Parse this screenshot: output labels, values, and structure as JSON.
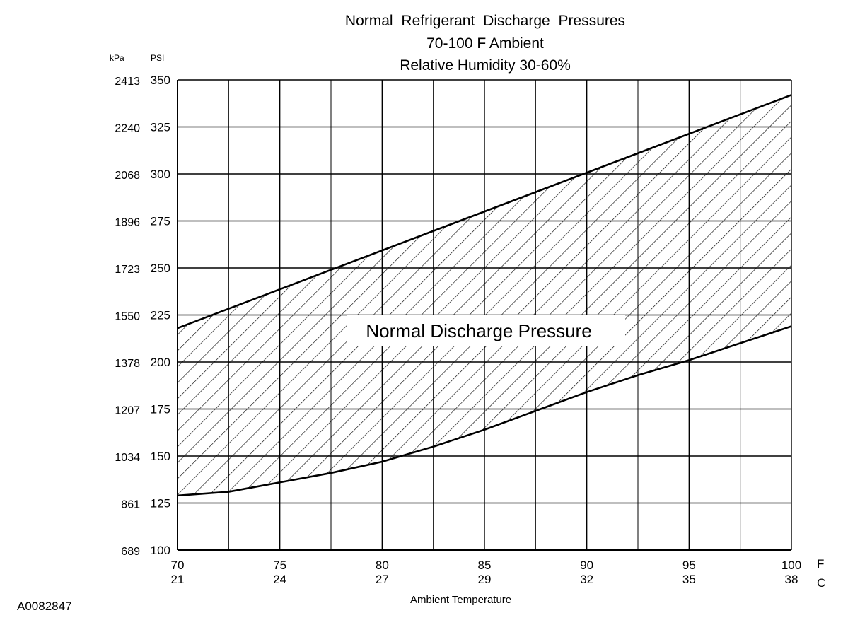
{
  "chart_data": {
    "type": "area",
    "title": "Normal Refrigerant Discharge Pressures",
    "subtitle_1": "70-100 F Ambient",
    "subtitle_2": "Relative Humidity 30-60%",
    "band_label": "Normal Discharge Pressure",
    "xlabel": "Ambient Temperature",
    "x_unit_primary": "F",
    "x_unit_secondary": "C",
    "y_unit_primary": "PSI",
    "y_unit_secondary": "kPa",
    "xlim": [
      70,
      100
    ],
    "ylim": [
      100,
      350
    ],
    "x_ticks": [
      {
        "f": 70,
        "label_f": "70",
        "label_c": "21"
      },
      {
        "f": 75,
        "label_f": "75",
        "label_c": "24"
      },
      {
        "f": 80,
        "label_f": "80",
        "label_c": "27"
      },
      {
        "f": 85,
        "label_f": "85",
        "label_c": "29"
      },
      {
        "f": 90,
        "label_f": "90",
        "label_c": "32"
      },
      {
        "f": 95,
        "label_f": "95",
        "label_c": "35"
      },
      {
        "f": 100,
        "label_f": "100",
        "label_c": "38"
      }
    ],
    "x_minor_gridlines": [
      72.5,
      77.5,
      82.5,
      87.5,
      92.5,
      97.5
    ],
    "y_ticks": [
      {
        "psi": 100,
        "label_psi": "100",
        "label_kpa": "689"
      },
      {
        "psi": 125,
        "label_psi": "125",
        "label_kpa": "861"
      },
      {
        "psi": 150,
        "label_psi": "150",
        "label_kpa": "1034"
      },
      {
        "psi": 175,
        "label_psi": "175",
        "label_kpa": "1207"
      },
      {
        "psi": 200,
        "label_psi": "200",
        "label_kpa": "1378"
      },
      {
        "psi": 225,
        "label_psi": "225",
        "label_kpa": "1550"
      },
      {
        "psi": 250,
        "label_psi": "250",
        "label_kpa": "1723"
      },
      {
        "psi": 275,
        "label_psi": "275",
        "label_kpa": "1896"
      },
      {
        "psi": 300,
        "label_psi": "300",
        "label_kpa": "2068"
      },
      {
        "psi": 325,
        "label_psi": "325",
        "label_kpa": "2240"
      },
      {
        "psi": 350,
        "label_psi": "350",
        "label_kpa": "2413"
      }
    ],
    "series": [
      {
        "x": [
          70,
          72.5,
          75,
          77.5,
          80,
          82.5,
          85,
          87.5,
          90,
          92.5,
          95,
          97.5,
          100
        ],
        "values": [
          129,
          131,
          136,
          141,
          147,
          155,
          164,
          174,
          184,
          193,
          201,
          210,
          219
        ]
      },
      {
        "x": [
          70,
          100
        ],
        "values": [
          218,
          342
        ]
      }
    ],
    "grid": true
  },
  "figure_id": "A0082847"
}
